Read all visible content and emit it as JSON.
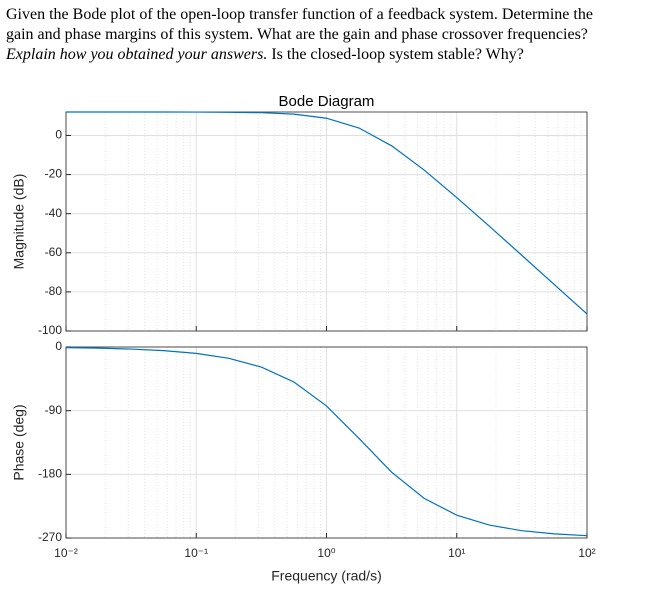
{
  "question": {
    "text_start": "Given the Bode plot of the open-loop transfer function of a feedback system.  Determine the gain and phase margins of this system.  What are the gain and phase crossover frequencies?",
    "emphasis": "Explain how you obtained your answers.",
    "text_end": "Is the closed-loop system stable? Why?"
  },
  "chart_data": [
    {
      "type": "line",
      "title": "Bode Diagram",
      "ylabel": "Magnitude (dB)",
      "log_x": true,
      "grid": true,
      "x": [
        0.01,
        0.01778,
        0.03162,
        0.05623,
        0.1,
        0.1778,
        0.3162,
        0.5623,
        1,
        1.778,
        3.162,
        5.623,
        10,
        17.78,
        31.62,
        56.23,
        100
      ],
      "series": [
        {
          "name": "Magnitude",
          "color": "#0072bd",
          "values": [
            12.0,
            12.0,
            12.0,
            12.0,
            11.96,
            11.89,
            11.64,
            10.91,
            8.81,
            3.8,
            -5.29,
            -17.68,
            -31.74,
            -46.42,
            -61.32,
            -76.29,
            -91.28
          ]
        }
      ],
      "xlim": [
        0.01,
        100
      ],
      "xticks": [
        0.01,
        0.1,
        1,
        10,
        100
      ],
      "ylim": [
        -100,
        12
      ],
      "yticks": [
        0,
        -20,
        -40,
        -60,
        -80,
        -100
      ]
    },
    {
      "type": "line",
      "ylabel": "Phase (deg)",
      "xlabel": "Frequency (rad/s)",
      "log_x": true,
      "grid": true,
      "x": [
        0.01,
        0.01778,
        0.03162,
        0.05623,
        0.1,
        0.1778,
        0.3162,
        0.5623,
        1,
        1.778,
        3.162,
        5.623,
        10,
        17.78,
        31.62,
        56.23,
        100
      ],
      "series": [
        {
          "name": "Phase",
          "color": "#0072bd",
          "values": [
            -0.9,
            -1.6,
            -2.9,
            -5.1,
            -9.0,
            -16.0,
            -28.4,
            -49.5,
            -83.3,
            -129.3,
            -177.0,
            -214.0,
            -237.7,
            -251.7,
            -259.7,
            -264.2,
            -266.7
          ]
        }
      ],
      "xlim": [
        0.01,
        100
      ],
      "xticks": [
        {
          "value": 0.01,
          "label": "10⁻²"
        },
        {
          "value": 0.1,
          "label": "10⁻¹"
        },
        {
          "value": 1,
          "label": "10⁰"
        },
        {
          "value": 10,
          "label": "10¹"
        },
        {
          "value": 100,
          "label": "10²"
        }
      ],
      "ylim": [
        -270,
        0
      ],
      "yticks": [
        0,
        -90,
        -180,
        -270
      ]
    }
  ]
}
